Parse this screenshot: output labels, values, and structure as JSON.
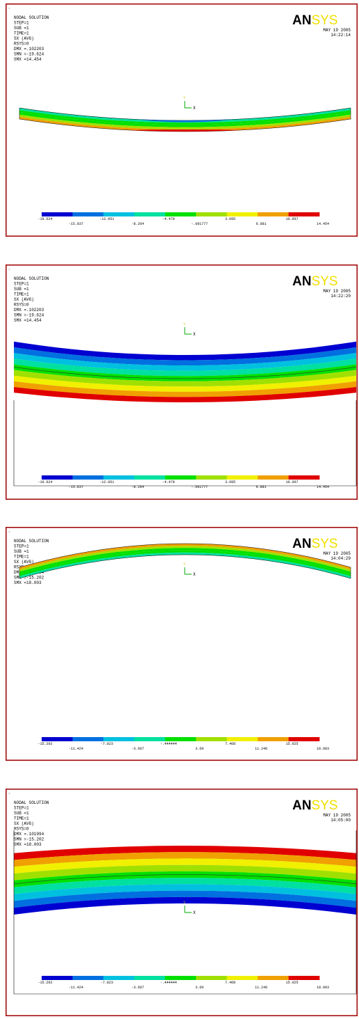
{
  "panels": [
    {
      "number": "1",
      "info": [
        "NODAL SOLUTION",
        "STEP=1",
        "SUB =1",
        "TIME=1",
        "SX       (AVG)",
        "RSYS=0",
        "DMX =.102203",
        "SMN =-19.624",
        "SMX =14.454"
      ],
      "logo": [
        "AN",
        "SYS"
      ],
      "date": "MAY 19 2005",
      "time": "14:22:14",
      "axes": [
        "Y",
        "X"
      ],
      "legend_top": [
        "-19.624",
        "-12.051",
        "-4.479",
        "3.095",
        "10.667"
      ],
      "legend_bottom": [
        "-15.837",
        "-8.264",
        "-.691777",
        "6.881",
        "14.454"
      ]
    },
    {
      "number": "1",
      "info": [
        "NODAL SOLUTION",
        "STEP=1",
        "SUB =1",
        "TIME=1",
        "SX       (AVG)",
        "RSYS=0",
        "DMX =.102203",
        "SMN =-19.624",
        "SMX =14.454"
      ],
      "logo": [
        "AN",
        "SYS"
      ],
      "date": "MAY 19 2005",
      "time": "14:22:20",
      "axes": [
        "Y",
        "X"
      ],
      "legend_top": [
        "-19.624",
        "-12.051",
        "-4.479",
        "3.095",
        "10.667"
      ],
      "legend_bottom": [
        "-15.837",
        "-8.264",
        "-.691777",
        "6.881",
        "14.454"
      ]
    },
    {
      "number": "1",
      "info": [
        "NODAL SOLUTION",
        "STEP=1",
        "SUB =1",
        "TIME=1",
        "SX       (AVG)",
        "RSYS=0",
        "DMX =.101994",
        "SMN =-15.202",
        "SMX =18.003"
      ],
      "logo": [
        "AN",
        "SYS"
      ],
      "date": "MAY 19 2005",
      "time": "14:04:29",
      "axes": [
        "Y",
        "X"
      ],
      "legend_top": [
        "-15.202",
        "-7.823",
        "-.444444",
        "7.468",
        "15.025"
      ],
      "legend_bottom": [
        "-11.424",
        "-3.667",
        "3.69",
        "11.246",
        "18.003"
      ]
    },
    {
      "number": "1",
      "info": [
        "NODAL SOLUTION",
        "STEP=1",
        "SUB =1",
        "TIME=1",
        "SX       (AVG)",
        "RSYS=0",
        "DMX =.101994",
        "SMN =-15.202",
        "SMX =18.003"
      ],
      "logo": [
        "AN",
        "SYS"
      ],
      "date": "MAY 19 2005",
      "time": "14:05:00",
      "axes": [
        "Y",
        "X"
      ],
      "legend_top": [
        "-15.202",
        "-7.823",
        "-.444444",
        "7.468",
        "15.025"
      ],
      "legend_bottom": [
        "-11.424",
        "-3.667",
        "3.69",
        "11.246",
        "18.003"
      ]
    }
  ]
}
